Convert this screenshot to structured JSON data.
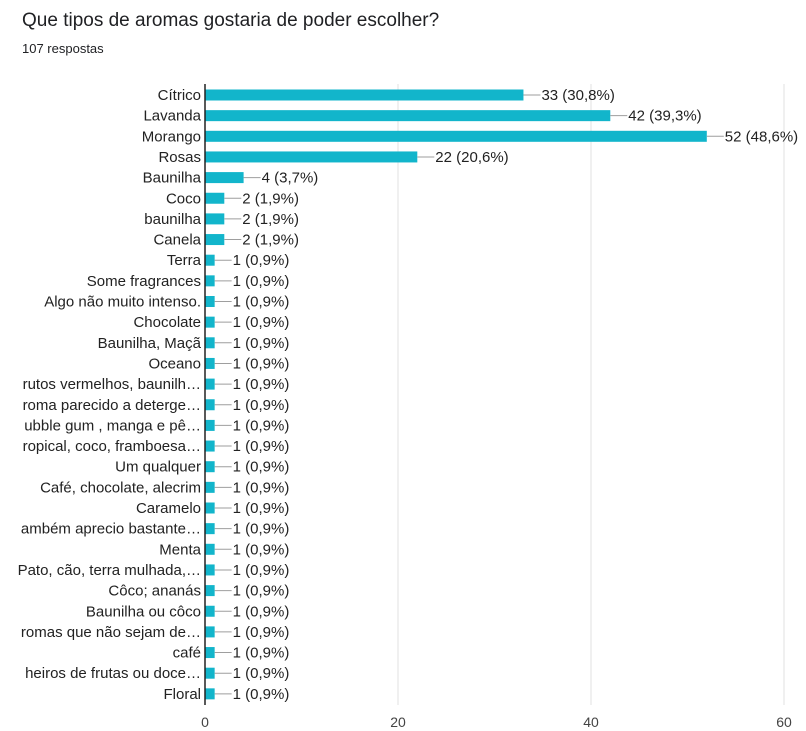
{
  "question": {
    "title": "Que tipos de aromas gostaria de poder escolher?",
    "responses": "107 respostas"
  },
  "colors": {
    "bar": "#12b5cb",
    "axis": "#222222",
    "grid": "#e0e0e0",
    "connector": "#9e9e9e"
  },
  "chart_data": {
    "type": "bar",
    "orientation": "horizontal",
    "categories": [
      "Cítrico",
      "Lavanda",
      "Morango",
      "Rosas",
      "Baunilha",
      "Coco",
      "baunilha",
      "Canela",
      "Terra",
      "Some fragrances",
      "Algo não muito intenso.",
      "Chocolate",
      "Baunilha, Maçã",
      "Oceano",
      "rutos vermelhos, baunilh…",
      "roma parecido a deterge…",
      "ubble gum , manga e pê…",
      "ropical, coco, framboesa…",
      "Um qualquer",
      "Café, chocolate, alecrim",
      "Caramelo",
      "ambém aprecio bastante…",
      "Menta",
      "Pato, cão, terra mulhada,…",
      "Côco; ananás",
      "Baunilha ou côco",
      "romas que não sejam de…",
      "café",
      "heiros de frutas ou doce…",
      "Floral"
    ],
    "values": [
      33,
      42,
      52,
      22,
      4,
      2,
      2,
      2,
      1,
      1,
      1,
      1,
      1,
      1,
      1,
      1,
      1,
      1,
      1,
      1,
      1,
      1,
      1,
      1,
      1,
      1,
      1,
      1,
      1,
      1
    ],
    "value_labels": [
      "33 (30,8%)",
      "42 (39,3%)",
      "52 (48,6%)",
      "22 (20,6%)",
      "4 (3,7%)",
      "2 (1,9%)",
      "2 (1,9%)",
      "2 (1,9%)",
      "1 (0,9%)",
      "1 (0,9%)",
      "1 (0,9%)",
      "1 (0,9%)",
      "1 (0,9%)",
      "1 (0,9%)",
      "1 (0,9%)",
      "1 (0,9%)",
      "1 (0,9%)",
      "1 (0,9%)",
      "1 (0,9%)",
      "1 (0,9%)",
      "1 (0,9%)",
      "1 (0,9%)",
      "1 (0,9%)",
      "1 (0,9%)",
      "1 (0,9%)",
      "1 (0,9%)",
      "1 (0,9%)",
      "1 (0,9%)",
      "1 (0,9%)",
      "1 (0,9%)"
    ],
    "xlim": [
      0,
      60
    ],
    "xticks": [
      0,
      20,
      40,
      60
    ],
    "grid": true,
    "legend": "none"
  }
}
